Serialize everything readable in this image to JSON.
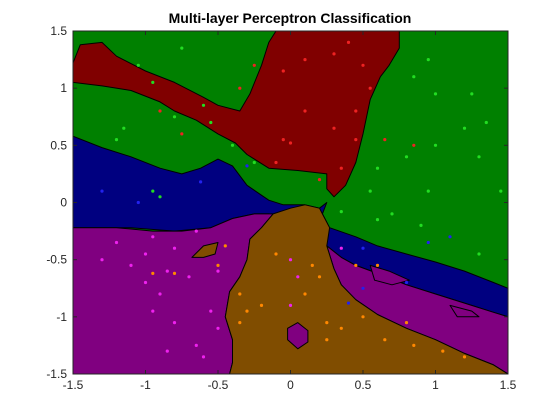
{
  "chart_data": {
    "type": "scatter",
    "title": "Multi-layer Perceptron Classification",
    "xlabel": "",
    "ylabel": "",
    "xlim": [
      -1.5,
      1.5
    ],
    "ylim": [
      -1.5,
      1.5
    ],
    "xticks": [
      -1.5,
      -1,
      -0.5,
      0,
      0.5,
      1,
      1.5
    ],
    "yticks": [
      -1.5,
      -1,
      -0.5,
      0,
      0.5,
      1,
      1.5
    ],
    "xtick_labels": [
      "-1.5",
      "-1",
      "-0.5",
      "0",
      "0.5",
      "1",
      "1.5"
    ],
    "ytick_labels": [
      "-1.5",
      "-1",
      "-0.5",
      "0",
      "0.5",
      "1",
      "1.5"
    ],
    "grid": false,
    "legend": "none",
    "class_colors": {
      "green": "#008000",
      "red": "#800000",
      "blue": "#000080",
      "purple": "#800080",
      "brown": "#804d00"
    },
    "point_colors": {
      "green": "#22dd22",
      "red": "#ee2222",
      "blue": "#2222ee",
      "purple": "#ee22ee",
      "brown": "#ff8800"
    },
    "regions": [
      {
        "class": "red",
        "polygon": [
          [
            -1.5,
            1.05
          ],
          [
            -1.5,
            1.22
          ],
          [
            -1.45,
            1.38
          ],
          [
            -1.3,
            1.4
          ],
          [
            -1.2,
            1.28
          ],
          [
            -1.0,
            1.15
          ],
          [
            -0.8,
            1.05
          ],
          [
            -0.6,
            0.92
          ],
          [
            -0.5,
            0.85
          ],
          [
            -0.35,
            0.8
          ],
          [
            -0.28,
            0.95
          ],
          [
            -0.2,
            1.2
          ],
          [
            -0.15,
            1.4
          ],
          [
            -0.1,
            1.5
          ],
          [
            0.75,
            1.5
          ],
          [
            0.75,
            1.35
          ],
          [
            0.68,
            1.2
          ],
          [
            0.62,
            1.1
          ],
          [
            0.55,
            0.9
          ],
          [
            0.5,
            0.6
          ],
          [
            0.45,
            0.35
          ],
          [
            0.38,
            0.15
          ],
          [
            0.3,
            0.05
          ],
          [
            0.25,
            0.12
          ],
          [
            0.25,
            0.25
          ],
          [
            0.05,
            0.28
          ],
          [
            -0.15,
            0.3
          ],
          [
            -0.3,
            0.42
          ],
          [
            -0.38,
            0.52
          ],
          [
            -0.5,
            0.6
          ],
          [
            -0.65,
            0.72
          ],
          [
            -0.8,
            0.8
          ],
          [
            -0.9,
            0.88
          ],
          [
            -1.1,
            0.98
          ],
          [
            -1.3,
            1.02
          ]
        ]
      },
      {
        "class": "blue",
        "polygon": [
          [
            -1.5,
            -0.22
          ],
          [
            -1.5,
            0.58
          ],
          [
            -1.3,
            0.48
          ],
          [
            -1.1,
            0.4
          ],
          [
            -0.9,
            0.3
          ],
          [
            -0.75,
            0.25
          ],
          [
            -0.62,
            0.3
          ],
          [
            -0.5,
            0.38
          ],
          [
            -0.4,
            0.32
          ],
          [
            -0.3,
            0.15
          ],
          [
            -0.15,
            0.02
          ],
          [
            -0.05,
            -0.02
          ],
          [
            0.1,
            -0.02
          ],
          [
            0.2,
            -0.05
          ],
          [
            0.25,
            0.0
          ],
          [
            0.22,
            -0.1
          ],
          [
            0.27,
            -0.22
          ],
          [
            0.45,
            -0.3
          ],
          [
            0.6,
            -0.38
          ],
          [
            0.8,
            -0.45
          ],
          [
            1.0,
            -0.52
          ],
          [
            1.2,
            -0.6
          ],
          [
            1.4,
            -0.7
          ],
          [
            1.5,
            -0.75
          ],
          [
            1.5,
            -1.0
          ],
          [
            1.4,
            -0.96
          ],
          [
            1.2,
            -0.88
          ],
          [
            1.0,
            -0.8
          ],
          [
            0.8,
            -0.72
          ],
          [
            0.6,
            -0.62
          ],
          [
            0.45,
            -0.55
          ],
          [
            0.35,
            -0.48
          ],
          [
            0.25,
            -0.38
          ],
          [
            0.15,
            -0.25
          ],
          [
            0.0,
            -0.15
          ],
          [
            -0.15,
            -0.1
          ],
          [
            -0.25,
            -0.1
          ],
          [
            -0.4,
            -0.14
          ],
          [
            -0.55,
            -0.22
          ],
          [
            -0.8,
            -0.25
          ],
          [
            -1.1,
            -0.22
          ],
          [
            -1.3,
            -0.22
          ]
        ]
      },
      {
        "class": "purple",
        "polygon": [
          [
            -1.5,
            -1.5
          ],
          [
            -1.5,
            -0.22
          ],
          [
            -1.2,
            -0.22
          ],
          [
            -0.95,
            -0.25
          ],
          [
            -0.75,
            -0.25
          ],
          [
            -0.55,
            -0.22
          ],
          [
            -0.4,
            -0.14
          ],
          [
            -0.25,
            -0.1
          ],
          [
            -0.12,
            -0.1
          ],
          [
            -0.2,
            -0.22
          ],
          [
            -0.28,
            -0.32
          ],
          [
            -0.3,
            -0.5
          ],
          [
            -0.35,
            -0.65
          ],
          [
            -0.42,
            -0.78
          ],
          [
            -0.45,
            -1.0
          ],
          [
            -0.4,
            -1.2
          ],
          [
            -0.4,
            -1.4
          ],
          [
            -0.42,
            -1.5
          ]
        ]
      },
      {
        "class": "purple",
        "polygon": [
          [
            0.25,
            -0.38
          ],
          [
            0.35,
            -0.48
          ],
          [
            0.45,
            -0.55
          ],
          [
            0.6,
            -0.62
          ],
          [
            0.8,
            -0.72
          ],
          [
            1.0,
            -0.8
          ],
          [
            1.2,
            -0.88
          ],
          [
            1.4,
            -0.96
          ],
          [
            1.5,
            -1.0
          ],
          [
            1.5,
            -1.5
          ],
          [
            1.4,
            -1.42
          ],
          [
            1.2,
            -1.32
          ],
          [
            1.0,
            -1.2
          ],
          [
            0.8,
            -1.1
          ],
          [
            0.6,
            -0.98
          ],
          [
            0.45,
            -0.85
          ],
          [
            0.35,
            -0.72
          ],
          [
            0.3,
            -0.58
          ]
        ]
      },
      {
        "class": "purple",
        "polygon": [
          [
            -0.05,
            -0.35
          ],
          [
            0.05,
            -0.3
          ],
          [
            0.12,
            -0.35
          ],
          [
            0.15,
            -0.55
          ],
          [
            0.15,
            -0.8
          ],
          [
            0.1,
            -1.0
          ],
          [
            0.1,
            -1.2
          ],
          [
            0.05,
            -1.3
          ],
          [
            -0.05,
            -1.3
          ],
          [
            -0.1,
            -1.1
          ],
          [
            -0.1,
            -0.8
          ],
          [
            -0.08,
            -0.55
          ]
        ]
      },
      {
        "class": "brown",
        "polygon": [
          [
            -0.42,
            -1.5
          ],
          [
            -0.4,
            -1.4
          ],
          [
            -0.4,
            -1.2
          ],
          [
            -0.45,
            -1.0
          ],
          [
            -0.42,
            -0.78
          ],
          [
            -0.35,
            -0.65
          ],
          [
            -0.3,
            -0.5
          ],
          [
            -0.28,
            -0.32
          ],
          [
            -0.2,
            -0.22
          ],
          [
            -0.12,
            -0.1
          ],
          [
            0.0,
            -0.05
          ],
          [
            0.1,
            -0.02
          ],
          [
            0.2,
            -0.05
          ],
          [
            0.22,
            -0.1
          ],
          [
            0.27,
            -0.22
          ],
          [
            0.25,
            -0.38
          ],
          [
            0.3,
            -0.58
          ],
          [
            0.35,
            -0.72
          ],
          [
            0.45,
            -0.85
          ],
          [
            0.6,
            -0.98
          ],
          [
            0.8,
            -1.1
          ],
          [
            1.0,
            -1.2
          ],
          [
            1.2,
            -1.32
          ],
          [
            1.4,
            -1.42
          ],
          [
            1.5,
            -1.5
          ]
        ]
      },
      {
        "class": "brown",
        "polygon": [
          [
            -0.68,
            -0.48
          ],
          [
            -0.6,
            -0.38
          ],
          [
            -0.5,
            -0.35
          ],
          [
            -0.52,
            -0.45
          ],
          [
            -0.6,
            -0.48
          ]
        ]
      }
    ],
    "holes": [
      {
        "class": "purple",
        "polygon": [
          [
            0.05,
            -1.05
          ],
          [
            0.12,
            -1.12
          ],
          [
            0.12,
            -1.22
          ],
          [
            0.05,
            -1.28
          ],
          [
            -0.02,
            -1.2
          ],
          [
            -0.02,
            -1.1
          ]
        ]
      },
      {
        "class": "purple",
        "polygon": [
          [
            0.55,
            -0.55
          ],
          [
            0.68,
            -0.6
          ],
          [
            0.82,
            -0.68
          ],
          [
            0.7,
            -0.72
          ],
          [
            0.58,
            -0.68
          ]
        ]
      },
      {
        "class": "purple",
        "polygon": [
          [
            1.1,
            -0.9
          ],
          [
            1.25,
            -0.95
          ],
          [
            1.3,
            -1.0
          ],
          [
            1.15,
            -1.0
          ]
        ]
      }
    ],
    "series": [
      {
        "class": "green",
        "points": [
          [
            -0.75,
            1.35
          ],
          [
            -1.05,
            1.2
          ],
          [
            -0.95,
            1.05
          ],
          [
            -1.15,
            0.65
          ],
          [
            -1.2,
            0.55
          ],
          [
            -0.8,
            0.75
          ],
          [
            -0.6,
            0.85
          ],
          [
            -0.55,
            0.7
          ],
          [
            -0.4,
            0.5
          ],
          [
            -0.25,
            0.35
          ],
          [
            -0.95,
            0.1
          ],
          [
            -0.9,
            0.05
          ],
          [
            0.35,
            -0.08
          ],
          [
            0.55,
            0.1
          ],
          [
            0.6,
            0.3
          ],
          [
            0.8,
            0.4
          ],
          [
            1.0,
            0.5
          ],
          [
            1.2,
            0.65
          ],
          [
            1.35,
            0.7
          ],
          [
            1.0,
            0.95
          ],
          [
            0.85,
            1.1
          ],
          [
            0.95,
            1.25
          ],
          [
            1.25,
            0.95
          ],
          [
            1.3,
            0.4
          ],
          [
            1.45,
            0.1
          ],
          [
            0.95,
            0.1
          ],
          [
            0.7,
            -0.1
          ],
          [
            0.9,
            -0.2
          ],
          [
            0.6,
            -0.15
          ],
          [
            1.3,
            -0.45
          ]
        ]
      },
      {
        "class": "red",
        "points": [
          [
            -0.35,
            1.0
          ],
          [
            -0.25,
            1.2
          ],
          [
            -0.05,
            1.15
          ],
          [
            0.1,
            1.25
          ],
          [
            0.3,
            1.3
          ],
          [
            0.4,
            1.4
          ],
          [
            0.5,
            1.2
          ],
          [
            0.55,
            1.0
          ],
          [
            0.45,
            0.8
          ],
          [
            0.1,
            0.8
          ],
          [
            -0.05,
            0.55
          ],
          [
            0.0,
            0.52
          ],
          [
            0.3,
            0.65
          ],
          [
            0.45,
            0.55
          ],
          [
            0.35,
            0.3
          ],
          [
            0.2,
            0.2
          ],
          [
            -0.1,
            0.35
          ],
          [
            -0.9,
            0.8
          ],
          [
            -0.75,
            0.6
          ],
          [
            0.85,
            0.5
          ],
          [
            0.65,
            0.55
          ]
        ]
      },
      {
        "class": "blue",
        "points": [
          [
            -1.3,
            0.1
          ],
          [
            -1.05,
            0.0
          ],
          [
            -0.3,
            0.32
          ],
          [
            -0.62,
            0.18
          ],
          [
            0.5,
            -0.4
          ],
          [
            0.95,
            -0.35
          ],
          [
            1.1,
            -0.3
          ],
          [
            0.8,
            -0.7
          ],
          [
            0.4,
            -0.88
          ],
          [
            0.5,
            -0.75
          ]
        ]
      },
      {
        "class": "purple",
        "points": [
          [
            -1.2,
            -0.35
          ],
          [
            -1.3,
            -0.5
          ],
          [
            -1.1,
            -0.55
          ],
          [
            -1.0,
            -0.45
          ],
          [
            -0.95,
            -0.3
          ],
          [
            -0.8,
            -0.4
          ],
          [
            -0.65,
            -0.25
          ],
          [
            -0.85,
            -0.6
          ],
          [
            -0.7,
            -0.65
          ],
          [
            -0.5,
            -0.6
          ],
          [
            -1.0,
            -0.7
          ],
          [
            -0.9,
            -0.8
          ],
          [
            -0.95,
            -0.95
          ],
          [
            -0.8,
            -1.05
          ],
          [
            -0.55,
            -0.95
          ],
          [
            -0.5,
            -1.1
          ],
          [
            -0.85,
            -1.3
          ],
          [
            -0.65,
            -1.25
          ],
          [
            -0.6,
            -1.35
          ],
          [
            0.0,
            -0.5
          ],
          [
            0.05,
            -0.65
          ],
          [
            0.0,
            -0.9
          ],
          [
            0.35,
            -0.4
          ]
        ]
      },
      {
        "class": "brown",
        "points": [
          [
            -0.95,
            -0.62
          ],
          [
            -0.8,
            -0.62
          ],
          [
            -0.5,
            -0.55
          ],
          [
            -0.45,
            -0.38
          ],
          [
            -0.35,
            -0.8
          ],
          [
            -0.3,
            -0.95
          ],
          [
            -0.35,
            -1.05
          ],
          [
            -0.2,
            -0.9
          ],
          [
            -0.1,
            -0.45
          ],
          [
            0.1,
            -0.8
          ],
          [
            0.15,
            -0.55
          ],
          [
            0.2,
            -0.65
          ],
          [
            0.25,
            -1.05
          ],
          [
            0.25,
            -1.2
          ],
          [
            0.35,
            -1.1
          ],
          [
            0.5,
            -1.0
          ],
          [
            0.45,
            -0.55
          ],
          [
            0.6,
            -0.55
          ],
          [
            0.8,
            -1.05
          ],
          [
            0.85,
            -1.25
          ],
          [
            1.05,
            -1.3
          ],
          [
            1.2,
            -1.35
          ],
          [
            0.65,
            -1.2
          ]
        ]
      }
    ]
  }
}
